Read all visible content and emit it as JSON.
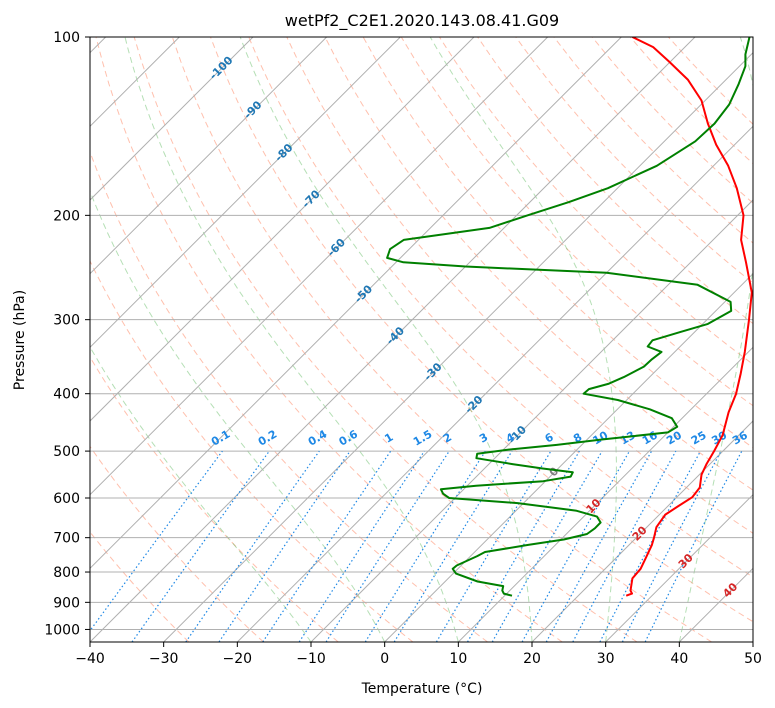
{
  "chart_data": {
    "type": "line",
    "title": "wetPf2_C2E1.2020.143.08.41.G09",
    "xlabel": "Temperature (°C)",
    "ylabel": "Pressure (hPa)",
    "xlim": [
      -40,
      50
    ],
    "ylim": [
      1050,
      100
    ],
    "y_scale": "log",
    "grid": true,
    "x_ticks": [
      -40,
      -30,
      -20,
      -10,
      0,
      10,
      20,
      30,
      40,
      50
    ],
    "y_ticks": [
      100,
      200,
      300,
      400,
      500,
      600,
      700,
      800,
      900,
      1000
    ],
    "x_tick_labels": [
      "−40",
      "−30",
      "−20",
      "−10",
      "0",
      "10",
      "20",
      "30",
      "40",
      "50"
    ],
    "y_tick_labels": [
      "100",
      "200",
      "300",
      "400",
      "500",
      "600",
      "700",
      "800",
      "900",
      "1000"
    ],
    "series": [
      {
        "color": "#ff0000",
        "note": "temperature",
        "points": [
          [
            877,
            26.5
          ],
          [
            870,
            27.0
          ],
          [
            860,
            26.4
          ],
          [
            820,
            25.0
          ],
          [
            790,
            24.8
          ],
          [
            760,
            24.1
          ],
          [
            720,
            23.1
          ],
          [
            700,
            22.4
          ],
          [
            672,
            21.3
          ],
          [
            640,
            20.8
          ],
          [
            620,
            21.4
          ],
          [
            598,
            22.1
          ],
          [
            576,
            21.8
          ],
          [
            548,
            20.3
          ],
          [
            525,
            19.5
          ],
          [
            500,
            18.8
          ],
          [
            470,
            17.8
          ],
          [
            430,
            15.5
          ],
          [
            400,
            14.0
          ],
          [
            370,
            11.9
          ],
          [
            340,
            9.5
          ],
          [
            300,
            5.7
          ],
          [
            270,
            2.4
          ],
          [
            240,
            -2.5
          ],
          [
            220,
            -6.2
          ],
          [
            200,
            -9.2
          ],
          [
            180,
            -13.8
          ],
          [
            165,
            -18.0
          ],
          [
            152,
            -22.5
          ],
          [
            140,
            -26.5
          ],
          [
            128,
            -30.5
          ],
          [
            118,
            -35.2
          ],
          [
            110,
            -40.2
          ],
          [
            104,
            -44.3
          ],
          [
            100,
            -48.5
          ]
        ]
      },
      {
        "color": "#008000",
        "note": "dewpoint",
        "points": [
          [
            877,
            11.0
          ],
          [
            870,
            9.6
          ],
          [
            860,
            9.0
          ],
          [
            845,
            8.5
          ],
          [
            830,
            4.4
          ],
          [
            805,
            0.4
          ],
          [
            790,
            -0.7
          ],
          [
            780,
            -0.6
          ],
          [
            765,
            0.2
          ],
          [
            752,
            0.9
          ],
          [
            740,
            1.4
          ],
          [
            720,
            6.3
          ],
          [
            705,
            10.4
          ],
          [
            690,
            12.8
          ],
          [
            675,
            13.1
          ],
          [
            660,
            13.1
          ],
          [
            645,
            11.8
          ],
          [
            630,
            8.1
          ],
          [
            612,
            -0.8
          ],
          [
            600,
            -10.8
          ],
          [
            590,
            -12.2
          ],
          [
            580,
            -13.1
          ],
          [
            572,
            -8.8
          ],
          [
            562,
            -0.3
          ],
          [
            552,
            2.8
          ],
          [
            543,
            2.5
          ],
          [
            535,
            -2.1
          ],
          [
            526,
            -6.8
          ],
          [
            514,
            -12.5
          ],
          [
            505,
            -13.0
          ],
          [
            497,
            -9.3
          ],
          [
            488,
            -3.4
          ],
          [
            478,
            2.0
          ],
          [
            465,
            10.0
          ],
          [
            455,
            10.5
          ],
          [
            440,
            8.6
          ],
          [
            425,
            4.4
          ],
          [
            410,
            -1.2
          ],
          [
            400,
            -6.7
          ],
          [
            393,
            -6.6
          ],
          [
            385,
            -4.7
          ],
          [
            375,
            -3.5
          ],
          [
            360,
            -2.2
          ],
          [
            350,
            -2.1
          ],
          [
            340,
            -1.8
          ],
          [
            333,
            -4.4
          ],
          [
            325,
            -4.6
          ],
          [
            315,
            -2.0
          ],
          [
            305,
            0.7
          ],
          [
            290,
            2.1
          ],
          [
            280,
            0.8
          ],
          [
            262,
            -6.0
          ],
          [
            250,
            -20.0
          ],
          [
            244,
            -40.0
          ],
          [
            240,
            -49.0
          ],
          [
            236,
            -51.8
          ],
          [
            228,
            -52.6
          ],
          [
            220,
            -52.0
          ],
          [
            210,
            -42.0
          ],
          [
            200,
            -38.5
          ],
          [
            190,
            -34.7
          ],
          [
            180,
            -31.3
          ],
          [
            165,
            -27.7
          ],
          [
            150,
            -25.8
          ],
          [
            140,
            -25.6
          ],
          [
            130,
            -26.2
          ],
          [
            120,
            -27.7
          ],
          [
            112,
            -29.2
          ],
          [
            107,
            -30.8
          ],
          [
            100,
            -32.6
          ]
        ]
      }
    ],
    "isotherms_c": [
      -100,
      -90,
      -80,
      -70,
      -60,
      -50,
      -40,
      -30,
      -20,
      -10,
      0,
      10,
      20,
      30,
      40,
      50
    ],
    "dry_adiabats_c": [
      -30,
      -20,
      -10,
      0,
      10,
      20,
      30,
      40,
      50,
      60,
      70,
      80,
      90,
      100,
      110,
      120,
      130,
      140,
      150,
      160,
      170
    ],
    "moist_adiabats_c": [
      -10,
      0,
      10,
      20,
      30,
      40
    ],
    "mixing_ratio_lines": [
      0.1,
      0.2,
      0.4,
      0.6,
      1,
      1.5,
      2,
      3,
      4,
      6,
      8,
      10,
      13,
      16,
      20,
      25,
      30,
      36
    ],
    "isotherm_labels": [
      {
        "value": -100,
        "text": "-100"
      },
      {
        "value": -90,
        "text": "-90"
      },
      {
        "value": -80,
        "text": "-80"
      },
      {
        "value": -70,
        "text": "-70"
      },
      {
        "value": -60,
        "text": "-60"
      },
      {
        "value": -50,
        "text": "-50"
      },
      {
        "value": -40,
        "text": "-40"
      },
      {
        "value": -30,
        "text": "-30"
      },
      {
        "value": -20,
        "text": "-20"
      },
      {
        "value": -10,
        "text": "-10"
      },
      {
        "value": 0,
        "text": "0"
      },
      {
        "value": 10,
        "text": "10"
      },
      {
        "value": 20,
        "text": "20"
      },
      {
        "value": 30,
        "text": "30"
      },
      {
        "value": 40,
        "text": "40"
      }
    ],
    "mixing_ratio_labels": [
      {
        "value": 0.1,
        "text": "0.1"
      },
      {
        "value": 0.2,
        "text": "0.2"
      },
      {
        "value": 0.4,
        "text": "0.4"
      },
      {
        "value": 0.6,
        "text": "0.6"
      },
      {
        "value": 1,
        "text": "1"
      },
      {
        "value": 1.5,
        "text": "1.5"
      },
      {
        "value": 2,
        "text": "2"
      },
      {
        "value": 3,
        "text": "3"
      },
      {
        "value": 4,
        "text": "4"
      },
      {
        "value": 6,
        "text": "6"
      },
      {
        "value": 8,
        "text": "8"
      },
      {
        "value": 10,
        "text": "10"
      },
      {
        "value": 13,
        "text": "13"
      },
      {
        "value": 16,
        "text": "16"
      },
      {
        "value": 20,
        "text": "20"
      },
      {
        "value": 25,
        "text": "25"
      },
      {
        "value": 30,
        "text": "30"
      },
      {
        "value": 36,
        "text": "36"
      }
    ]
  },
  "colors": {
    "temperature": "#ff0000",
    "dewpoint": "#008000",
    "isotherm_label_cold": "#1f77b4",
    "isotherm_label_warm": "#d62728",
    "isotherm_label_zero": "#7f7f7f",
    "mixing_ratio": "#1e88e5",
    "dry_adiabat": "#ff8c69",
    "moist_adiabat": "#5cb85c",
    "grid": "#b0b0b0"
  }
}
